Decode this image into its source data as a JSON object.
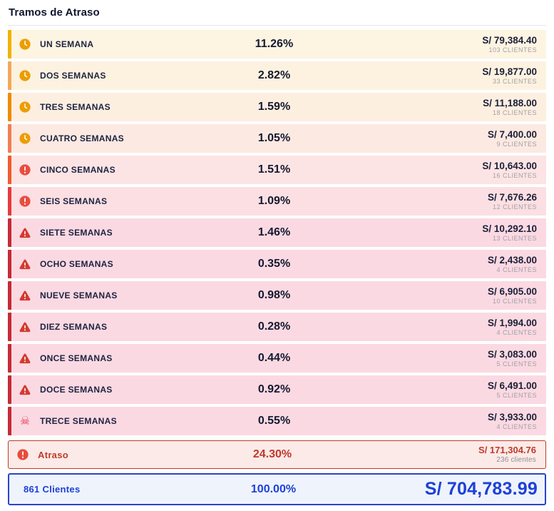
{
  "title": "Tramos de Atraso",
  "rows": [
    {
      "label": "UN SEMANA",
      "pct": "11.26%",
      "amount": "S/ 79,384.40",
      "clients": "103 CLIENTES",
      "icon": "clock-icon",
      "border_color": "#f2b200",
      "bg_color": "#fdf4e2",
      "icon_color": "#ec9d00"
    },
    {
      "label": "DOS SEMANAS",
      "pct": "2.82%",
      "amount": "S/ 19,877.00",
      "clients": "33 CLIENTES",
      "icon": "clock-icon",
      "border_color": "#f5a75d",
      "bg_color": "#fdf2e0",
      "icon_color": "#ec9d00"
    },
    {
      "label": "TRES SEMANAS",
      "pct": "1.59%",
      "amount": "S/ 11,188.00",
      "clients": "18 CLIENTES",
      "icon": "clock-icon",
      "border_color": "#f18a00",
      "bg_color": "#fdefe0",
      "icon_color": "#ec9d00"
    },
    {
      "label": "CUATRO SEMANAS",
      "pct": "1.05%",
      "amount": "S/ 7,400.00",
      "clients": "9 CLIENTES",
      "icon": "clock-icon",
      "border_color": "#f37e52",
      "bg_color": "#fce9e2",
      "icon_color": "#ec9d00"
    },
    {
      "label": "CINCO SEMANAS",
      "pct": "1.51%",
      "amount": "S/ 10,643.00",
      "clients": "16 CLIENTES",
      "icon": "alert-circle-icon",
      "border_color": "#f15b2e",
      "bg_color": "#fce4e4",
      "icon_color": "#ea4c40"
    },
    {
      "label": "SEIS SEMANAS",
      "pct": "1.09%",
      "amount": "S/ 7,676.26",
      "clients": "12 CLIENTES",
      "icon": "alert-circle-icon",
      "border_color": "#e63b3b",
      "bg_color": "#fcdfe3",
      "icon_color": "#ea4c40"
    },
    {
      "label": "SIETE SEMANAS",
      "pct": "1.46%",
      "amount": "S/ 10,292.10",
      "clients": "13 CLIENTES",
      "icon": "warning-triangle-icon",
      "border_color": "#c42b36",
      "bg_color": "#fbd9e2",
      "icon_color": "#d43a30"
    },
    {
      "label": "OCHO SEMANAS",
      "pct": "0.35%",
      "amount": "S/ 2,438.00",
      "clients": "4 CLIENTES",
      "icon": "warning-triangle-icon",
      "border_color": "#c42b36",
      "bg_color": "#fbd9e2",
      "icon_color": "#d43a30"
    },
    {
      "label": "NUEVE SEMANAS",
      "pct": "0.98%",
      "amount": "S/ 6,905.00",
      "clients": "10 CLIENTES",
      "icon": "warning-triangle-icon",
      "border_color": "#c42b36",
      "bg_color": "#fbd9e2",
      "icon_color": "#d43a30"
    },
    {
      "label": "DIEZ SEMANAS",
      "pct": "0.28%",
      "amount": "S/ 1,994.00",
      "clients": "4 CLIENTES",
      "icon": "warning-triangle-icon",
      "border_color": "#c42b36",
      "bg_color": "#fbd9e2",
      "icon_color": "#d43a30"
    },
    {
      "label": "ONCE SEMANAS",
      "pct": "0.44%",
      "amount": "S/ 3,083.00",
      "clients": "5 CLIENTES",
      "icon": "warning-triangle-icon",
      "border_color": "#c42b36",
      "bg_color": "#fbd9e2",
      "icon_color": "#d43a30"
    },
    {
      "label": "DOCE SEMANAS",
      "pct": "0.92%",
      "amount": "S/ 6,491.00",
      "clients": "5 CLIENTES",
      "icon": "warning-triangle-icon",
      "border_color": "#c42b36",
      "bg_color": "#fbd9e2",
      "icon_color": "#d43a30"
    },
    {
      "label": "TRECE SEMANAS",
      "pct": "0.55%",
      "amount": "S/ 3,933.00",
      "clients": "4 CLIENTES",
      "icon": "skull-icon",
      "border_color": "#c42b36",
      "bg_color": "#fbd9e2",
      "icon_color": "#e8344e"
    }
  ],
  "atraso": {
    "label": "Atraso",
    "pct": "24.30%",
    "amount": "S/ 171,304.76",
    "clients": "236 clientes",
    "icon": "alert-circle-icon",
    "border_color": "#bf3a2b",
    "bg_color": "#fbeae7",
    "text_color": "#c0392b",
    "icon_color": "#e74c3c"
  },
  "total": {
    "label": "861 Clientes",
    "pct": "100.00%",
    "amount": "S/ 704,783.99",
    "border_color": "#2944cd",
    "bg_color": "#eff3fc",
    "text_color": "#1d40d8"
  }
}
